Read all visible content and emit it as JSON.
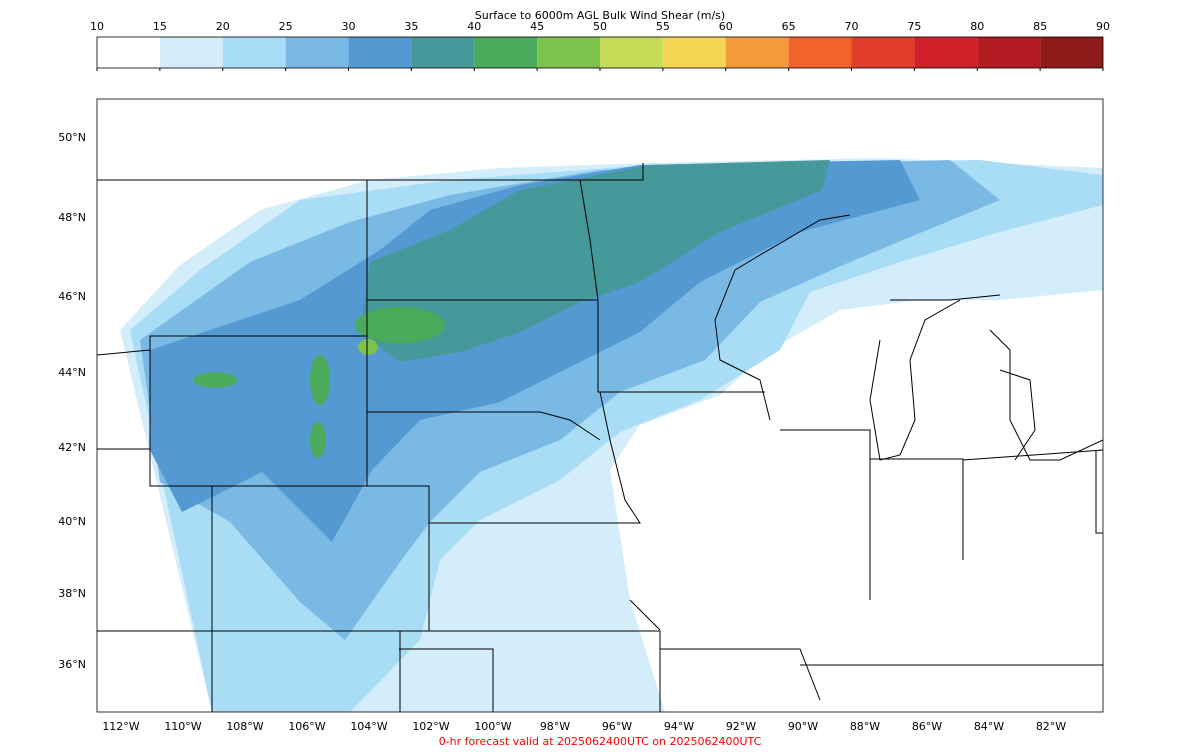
{
  "colorbar": {
    "title": "Surface to 6000m AGL Bulk Wind Shear (m/s)",
    "ticks": [
      10,
      15,
      20,
      25,
      30,
      35,
      40,
      45,
      50,
      55,
      60,
      65,
      70,
      75,
      80,
      85,
      90
    ],
    "colors": [
      "#ffffff",
      "#d4edfa",
      "#a9dcf5",
      "#79b9e4",
      "#5499d2",
      "#45999a",
      "#4aab5c",
      "#7dc24b",
      "#c5dc58",
      "#f8d655",
      "#f49a3a",
      "#f2622a",
      "#e03e2a",
      "#d0202a",
      "#b31c22",
      "#8f1a1a"
    ]
  },
  "map": {
    "lat_labels": [
      "50°N",
      "48°N",
      "46°N",
      "44°N",
      "42°N",
      "40°N",
      "38°N",
      "36°N"
    ],
    "lon_labels": [
      "112°W",
      "110°W",
      "108°W",
      "106°W",
      "104°W",
      "102°W",
      "100°W",
      "98°W",
      "96°W",
      "94°W",
      "92°W",
      "90°W",
      "88°W",
      "86°W",
      "84°W",
      "82°W"
    ]
  },
  "footer": "0-hr forecast valid at 2025062400UTC on 2025062400UTC"
}
